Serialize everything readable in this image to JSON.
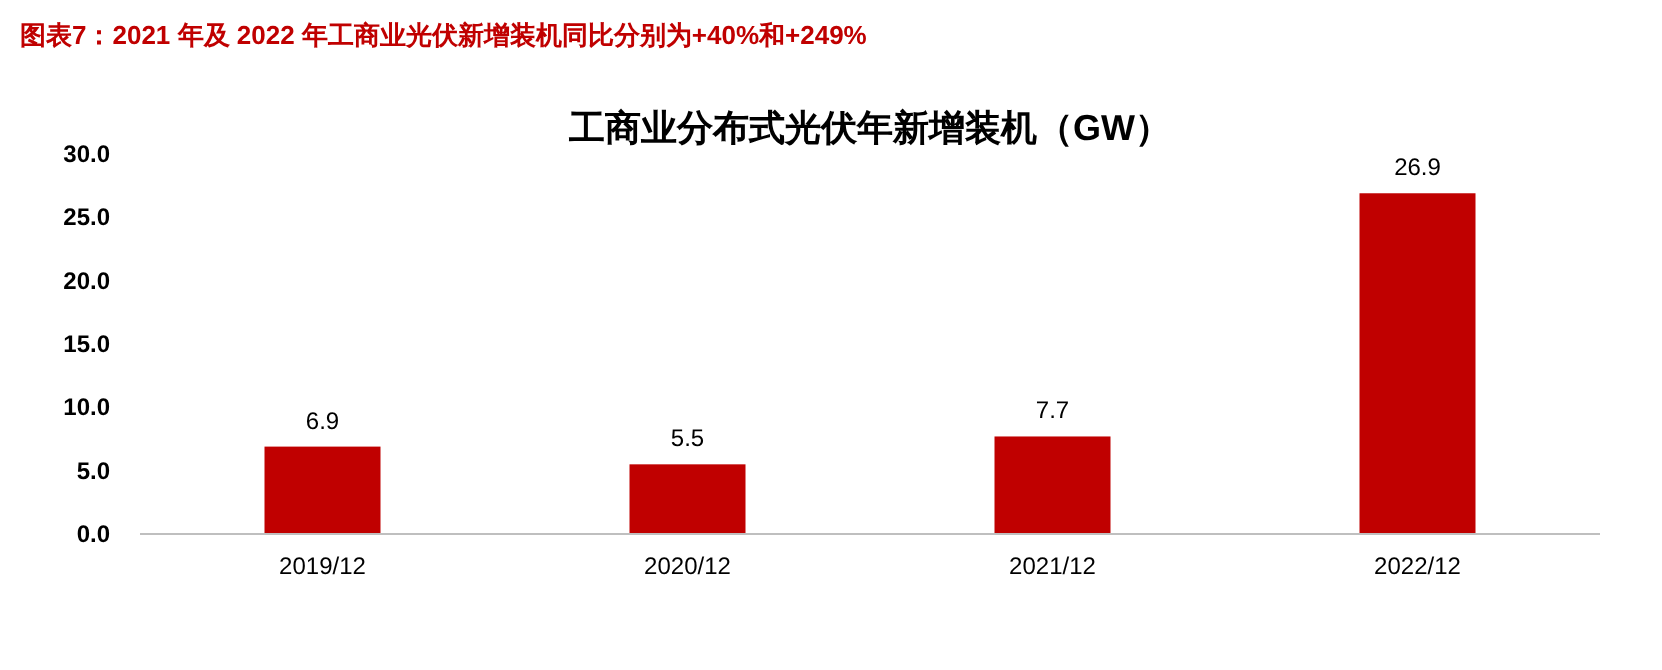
{
  "chart_data": {
    "type": "bar",
    "title": "图表7：2021 年及 2022 年工商业光伏新增装机同比分别为+40%和+249%",
    "subtitle": "工商业分布式光伏年新增装机（GW）",
    "categories": [
      "2019/12",
      "2020/12",
      "2021/12",
      "2022/12"
    ],
    "values": [
      6.9,
      5.5,
      7.7,
      26.9
    ],
    "color": "#c00000",
    "ylim": [
      0,
      30
    ],
    "yticks": [
      {
        "value": 0,
        "label": "0.0"
      },
      {
        "value": 5,
        "label": "5.0"
      },
      {
        "value": 10,
        "label": "10.0"
      },
      {
        "value": 15,
        "label": "15.0"
      },
      {
        "value": 20,
        "label": "20.0"
      },
      {
        "value": 25,
        "label": "25.0"
      },
      {
        "value": 30,
        "label": "30.0"
      }
    ],
    "grid": false,
    "data_labels": true
  }
}
